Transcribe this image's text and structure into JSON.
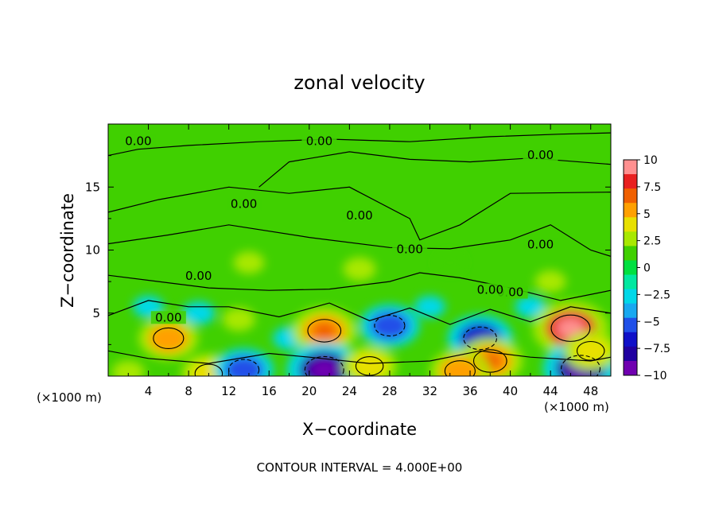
{
  "chart_data": {
    "type": "heatmap",
    "title": "zonal velocity",
    "xlabel": "X−coordinate",
    "ylabel": "Z−coordinate",
    "x_unit_left": "(×1000 m)",
    "x_unit_right": "(×1000 m)",
    "xlim": [
      0,
      50
    ],
    "ylim": [
      0,
      20
    ],
    "x_ticks": [
      4,
      8,
      12,
      16,
      20,
      24,
      28,
      32,
      36,
      40,
      44,
      48
    ],
    "y_ticks": [
      5,
      10,
      15
    ],
    "footnote": "CONTOUR INTERVAL = 4.000E+00",
    "contour_label": "0.00",
    "colorbar": {
      "ticks": [
        10,
        7.5,
        5,
        2.5,
        0,
        -2.5,
        -5,
        -7.5,
        -10
      ],
      "tick_labels": [
        "10",
        "7.5",
        "5",
        "2.5",
        "0",
        "−2.5",
        "−5",
        "−7.5",
        "−10"
      ],
      "colors": [
        "#ff9090",
        "#e82020",
        "#f06000",
        "#ffa000",
        "#e8e000",
        "#a8e800",
        "#40d000",
        "#00e040",
        "#00e8a0",
        "#00d8e8",
        "#18a8f0",
        "#2050e8",
        "#1010c8",
        "#2000a0",
        "#7000b0"
      ]
    },
    "blobs": [
      {
        "x": 6,
        "z": 3,
        "v": 5
      },
      {
        "x": 10,
        "z": 0.2,
        "v": 4
      },
      {
        "x": 2,
        "z": 0.3,
        "v": 3
      },
      {
        "x": 4,
        "z": 5.5,
        "v": -2.5
      },
      {
        "x": 9,
        "z": 5,
        "v": -3
      },
      {
        "x": 13,
        "z": 4.5,
        "v": 3
      },
      {
        "x": 13.5,
        "z": 0.5,
        "v": -5
      },
      {
        "x": 18,
        "z": 3,
        "v": -3
      },
      {
        "x": 21.5,
        "z": 3.6,
        "v": 6
      },
      {
        "x": 21.5,
        "z": 0.5,
        "v": -8
      },
      {
        "x": 26,
        "z": 0.8,
        "v": 4
      },
      {
        "x": 28,
        "z": 4,
        "v": -5
      },
      {
        "x": 32,
        "z": 5.5,
        "v": -2.5
      },
      {
        "x": 37,
        "z": 3,
        "v": -6
      },
      {
        "x": 38,
        "z": 1.2,
        "v": 6
      },
      {
        "x": 35,
        "z": 0.4,
        "v": 5
      },
      {
        "x": 42,
        "z": 5.5,
        "v": -2.5
      },
      {
        "x": 46,
        "z": 3.8,
        "v": 8
      },
      {
        "x": 47,
        "z": 0.6,
        "v": -8
      },
      {
        "x": 44,
        "z": 7.5,
        "v": 2.5
      },
      {
        "x": 25,
        "z": 8.5,
        "v": 3
      },
      {
        "x": 14,
        "z": 9,
        "v": 2.5
      },
      {
        "x": 34,
        "z": 9,
        "v": 2
      },
      {
        "x": 48,
        "z": 2,
        "v": 4
      }
    ]
  }
}
